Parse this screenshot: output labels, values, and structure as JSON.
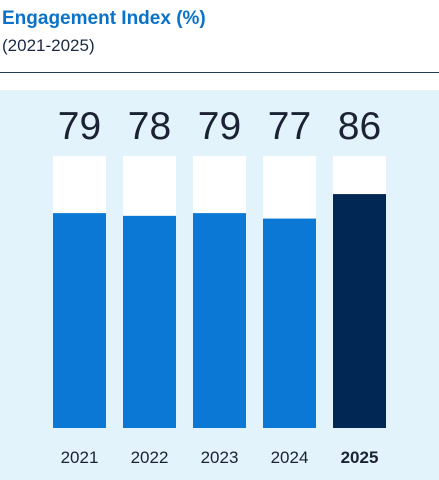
{
  "header": {
    "title": "Engagement Index (%)",
    "subtitle": "(2021-2025)"
  },
  "colors": {
    "bar": "#0a78d4",
    "highlight_bar": "#012854",
    "track": "#ffffff",
    "panel": "#e2f3fc"
  },
  "chart_data": {
    "type": "bar",
    "title": "Engagement Index (%)",
    "subtitle": "(2021-2025)",
    "categories": [
      "2021",
      "2022",
      "2023",
      "2024",
      "2025"
    ],
    "values": [
      79,
      78,
      79,
      77,
      86
    ],
    "value_labels": [
      "79",
      "78",
      "79",
      "77",
      "86"
    ],
    "highlight_category": "2025",
    "xlabel": "",
    "ylabel": "",
    "ylim": [
      0,
      100
    ],
    "grid": false,
    "legend": "none"
  }
}
